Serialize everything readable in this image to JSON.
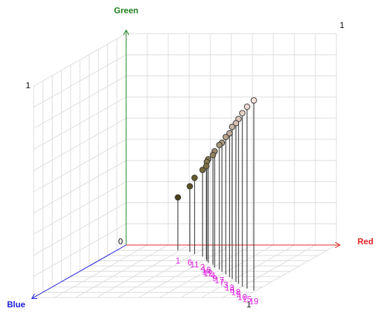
{
  "chart_data": {
    "type": "scatter3d",
    "x_label": "Red",
    "y_label": "Green",
    "z_label": "Blue",
    "axis_colors": {
      "x": "#e02020",
      "y": "#1a7f1a",
      "z": "#1a1ae0"
    },
    "label_color": "#e020e0",
    "xlim": [
      0,
      1
    ],
    "ylim": [
      0,
      1
    ],
    "zlim": [
      0,
      1
    ],
    "origin_tick": 0,
    "xticks": [
      1
    ],
    "yticks": [
      1
    ],
    "zticks": [
      1
    ],
    "grid": true,
    "labels": [
      "1",
      "6",
      "11",
      "2",
      "16",
      "14",
      "12",
      "4",
      "9",
      "17",
      "7",
      "3",
      "13",
      "8",
      "18",
      "5",
      "10",
      "15",
      "19"
    ],
    "x": [
      0.29,
      0.36,
      0.4,
      0.46,
      0.5,
      0.52,
      0.54,
      0.58,
      0.61,
      0.65,
      0.68,
      0.72,
      0.76,
      0.79,
      0.83,
      0.86,
      0.9,
      0.94,
      0.99
    ],
    "y": [
      0.25,
      0.31,
      0.36,
      0.41,
      0.44,
      0.47,
      0.49,
      0.52,
      0.55,
      0.59,
      0.61,
      0.65,
      0.68,
      0.72,
      0.75,
      0.78,
      0.82,
      0.86,
      0.9
    ],
    "z": [
      0.1,
      0.13,
      0.17,
      0.22,
      0.27,
      0.31,
      0.34,
      0.38,
      0.43,
      0.47,
      0.51,
      0.56,
      0.61,
      0.65,
      0.7,
      0.74,
      0.79,
      0.83,
      0.87
    ]
  }
}
